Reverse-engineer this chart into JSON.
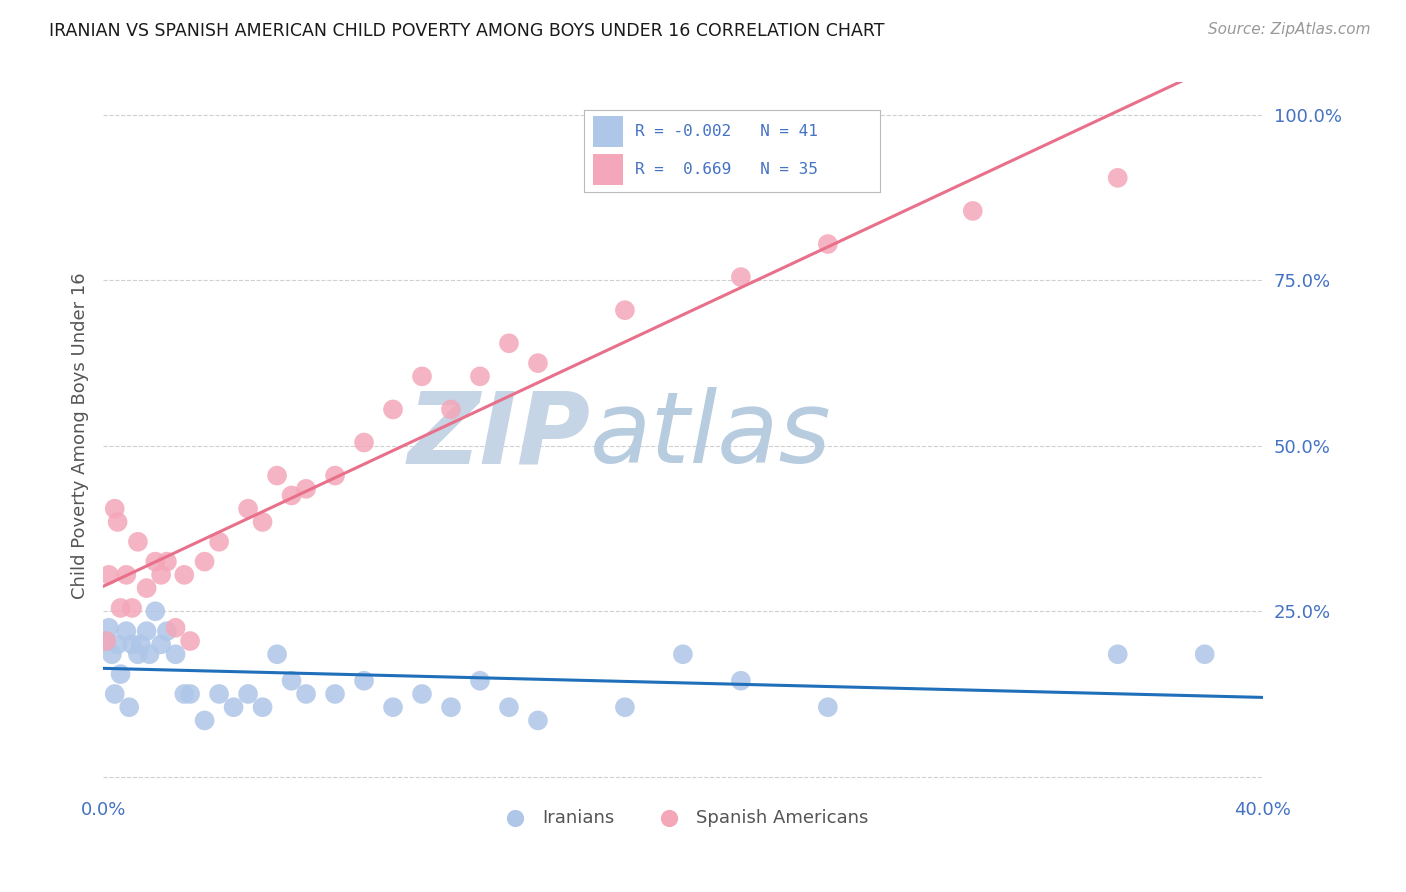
{
  "title": "IRANIAN VS SPANISH AMERICAN CHILD POVERTY AMONG BOYS UNDER 16 CORRELATION CHART",
  "source": "Source: ZipAtlas.com",
  "ylabel": "Child Poverty Among Boys Under 16",
  "xlim": [
    0.0,
    0.4
  ],
  "ylim": [
    -0.02,
    1.05
  ],
  "color_iranian": "#aec6e8",
  "color_spanish": "#f4a7b9",
  "color_line_iranian": "#1f6fba",
  "color_line_spanish": "#e8708a",
  "watermark_zip": "ZIP",
  "watermark_atlas": "atlas",
  "watermark_color_zip": "#c8d8e8",
  "watermark_color_atlas": "#b8cce0",
  "iran_x": [
    0.001,
    0.002,
    0.003,
    0.004,
    0.005,
    0.006,
    0.008,
    0.009,
    0.01,
    0.012,
    0.013,
    0.015,
    0.016,
    0.018,
    0.02,
    0.022,
    0.025,
    0.028,
    0.03,
    0.035,
    0.04,
    0.045,
    0.05,
    0.055,
    0.06,
    0.065,
    0.07,
    0.08,
    0.09,
    0.1,
    0.11,
    0.12,
    0.13,
    0.14,
    0.15,
    0.18,
    0.2,
    0.22,
    0.25,
    0.35,
    0.38
  ],
  "iran_y": [
    0.205,
    0.225,
    0.185,
    0.125,
    0.2,
    0.155,
    0.22,
    0.105,
    0.2,
    0.185,
    0.2,
    0.22,
    0.185,
    0.25,
    0.2,
    0.22,
    0.185,
    0.125,
    0.125,
    0.085,
    0.125,
    0.105,
    0.125,
    0.105,
    0.185,
    0.145,
    0.125,
    0.125,
    0.145,
    0.105,
    0.125,
    0.105,
    0.145,
    0.105,
    0.085,
    0.105,
    0.185,
    0.145,
    0.105,
    0.185,
    0.185
  ],
  "span_x": [
    0.001,
    0.002,
    0.004,
    0.005,
    0.006,
    0.008,
    0.01,
    0.012,
    0.015,
    0.018,
    0.02,
    0.022,
    0.025,
    0.028,
    0.03,
    0.035,
    0.04,
    0.05,
    0.055,
    0.06,
    0.065,
    0.07,
    0.08,
    0.09,
    0.1,
    0.11,
    0.12,
    0.13,
    0.14,
    0.15,
    0.18,
    0.22,
    0.25,
    0.3,
    0.35
  ],
  "span_y": [
    0.205,
    0.305,
    0.405,
    0.385,
    0.255,
    0.305,
    0.255,
    0.355,
    0.285,
    0.325,
    0.305,
    0.325,
    0.225,
    0.305,
    0.205,
    0.325,
    0.355,
    0.405,
    0.385,
    0.455,
    0.425,
    0.435,
    0.455,
    0.505,
    0.555,
    0.605,
    0.555,
    0.605,
    0.655,
    0.625,
    0.705,
    0.755,
    0.805,
    0.855,
    0.905
  ],
  "tick_color": "#4472c4",
  "label_color": "#555555",
  "grid_color": "#d0d0d0",
  "background": "#ffffff"
}
